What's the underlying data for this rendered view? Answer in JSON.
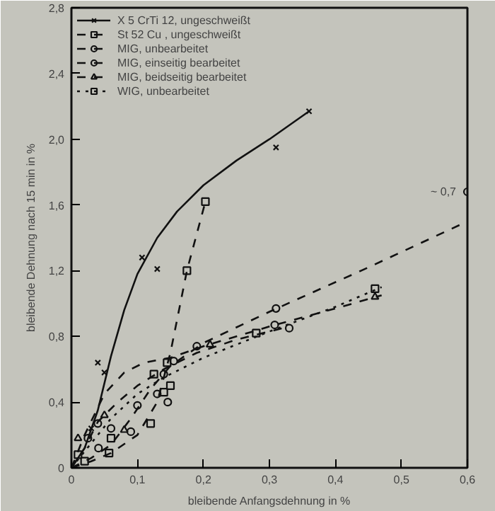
{
  "chart_data": {
    "type": "scatter",
    "xlabel": "bleibende Anfangsdehnung in %",
    "ylabel": "bleibende Dehnung nach 15 min in %",
    "xlim": [
      0,
      0.6
    ],
    "ylim": [
      0,
      2.8
    ],
    "xticks": [
      {
        "value": 0,
        "label": "0"
      },
      {
        "value": 0.1,
        "label": "0,1"
      },
      {
        "value": 0.2,
        "label": "0,2"
      },
      {
        "value": 0.3,
        "label": "0,3"
      },
      {
        "value": 0.4,
        "label": "0,4"
      },
      {
        "value": 0.5,
        "label": "0,5"
      },
      {
        "value": 0.6,
        "label": "0,6"
      }
    ],
    "yticks": [
      {
        "value": 0,
        "label": "0"
      },
      {
        "value": 0.4,
        "label": "0,4"
      },
      {
        "value": 0.8,
        "label": "0,8"
      },
      {
        "value": 1.2,
        "label": "1,2"
      },
      {
        "value": 1.6,
        "label": "1,6"
      },
      {
        "value": 2.0,
        "label": "2,0"
      },
      {
        "value": 2.4,
        "label": "2,4"
      },
      {
        "value": 2.8,
        "label": "2,8"
      }
    ],
    "grid": false,
    "legend": "top left",
    "annotations": [
      {
        "text": "~ 0,7",
        "x": 0.6,
        "y": 1.68
      }
    ],
    "series": [
      {
        "name": "X 5 CrTi 12, ungeschweißt",
        "type": "scatter",
        "color": "#111111",
        "marker": "cross",
        "x": [
          0.03,
          0.04,
          0.05,
          0.107,
          0.13,
          0.31,
          0.36
        ],
        "values": [
          0.24,
          0.64,
          0.58,
          1.28,
          1.21,
          1.95,
          2.17
        ]
      },
      {
        "type": "line",
        "color": "#111111",
        "line_style": "solid",
        "x": [
          0,
          0.02,
          0.04,
          0.06,
          0.08,
          0.1,
          0.13,
          0.16,
          0.2,
          0.25,
          0.3,
          0.36
        ],
        "values": [
          0,
          0.12,
          0.35,
          0.68,
          0.96,
          1.18,
          1.4,
          1.56,
          1.72,
          1.87,
          2.0,
          2.17
        ]
      },
      {
        "name": "St 52 Cu , ungeschweißt",
        "type": "scatter",
        "color": "#111111",
        "marker": "square",
        "x": [
          0.02,
          0.057,
          0.12,
          0.125,
          0.175,
          0.203
        ],
        "values": [
          0.04,
          0.09,
          0.27,
          0.57,
          1.2,
          1.62
        ]
      },
      {
        "type": "line",
        "color": "#111111",
        "line_style": "dashed",
        "x": [
          0,
          0.03,
          0.06,
          0.1,
          0.13,
          0.15,
          0.175,
          0.203
        ],
        "values": [
          0,
          0.04,
          0.09,
          0.2,
          0.4,
          0.7,
          1.2,
          1.62
        ]
      },
      {
        "name": "MIG, unbearbeitet",
        "type": "scatter",
        "color": "#111111",
        "marker": "circle",
        "x": [
          0.041,
          0.04,
          0.06,
          0.146,
          0.155,
          0.19,
          0.308,
          0.33
        ],
        "values": [
          0.12,
          0.27,
          0.24,
          0.4,
          0.65,
          0.74,
          0.87,
          0.85
        ]
      },
      {
        "type": "line",
        "color": "#111111",
        "line_style": "dashed",
        "x": [
          0,
          0.02,
          0.04,
          0.07,
          0.1,
          0.14,
          0.19,
          0.25,
          0.33
        ],
        "values": [
          0,
          0.12,
          0.28,
          0.4,
          0.5,
          0.6,
          0.7,
          0.78,
          0.86
        ]
      },
      {
        "name": "MIG, einseitig bearbeitet",
        "type": "scatter",
        "color": "#111111",
        "marker": "circle",
        "x": [
          0.025,
          0.09,
          0.1,
          0.13,
          0.14,
          0.31,
          0.6
        ],
        "values": [
          0.18,
          0.22,
          0.38,
          0.45,
          0.57,
          0.97,
          1.68
        ]
      },
      {
        "type": "line",
        "color": "#111111",
        "line_style": "dashed",
        "x": [
          0,
          0.03,
          0.06,
          0.09,
          0.12,
          0.15,
          0.2,
          0.3,
          0.45,
          0.6
        ],
        "values": [
          0,
          0.06,
          0.14,
          0.3,
          0.48,
          0.62,
          0.76,
          0.95,
          1.22,
          1.5
        ]
      },
      {
        "name": "MIG, beidseitig bearbeitet",
        "type": "scatter",
        "color": "#111111",
        "marker": "triangle",
        "x": [
          0.01,
          0.05,
          0.08,
          0.21,
          0.46
        ],
        "values": [
          0.18,
          0.32,
          0.23,
          0.75,
          1.04
        ]
      },
      {
        "type": "line",
        "color": "#111111",
        "line_style": "dashed",
        "x": [
          0,
          0.02,
          0.05,
          0.08,
          0.11,
          0.15,
          0.2,
          0.3,
          0.4,
          0.47
        ],
        "values": [
          0,
          0.2,
          0.45,
          0.58,
          0.64,
          0.67,
          0.74,
          0.86,
          0.97,
          1.05
        ]
      },
      {
        "name": "WIG, unbearbeitet",
        "type": "scatter",
        "color": "#111111",
        "marker": "square",
        "x": [
          0.01,
          0.06,
          0.14,
          0.15,
          0.145,
          0.28,
          0.46
        ],
        "values": [
          0.08,
          0.18,
          0.46,
          0.5,
          0.64,
          0.82,
          1.09
        ]
      },
      {
        "type": "line",
        "color": "#111111",
        "line_style": "dotted",
        "x": [
          0,
          0.03,
          0.06,
          0.1,
          0.14,
          0.2,
          0.3,
          0.4,
          0.47
        ],
        "values": [
          0,
          0.15,
          0.3,
          0.45,
          0.55,
          0.67,
          0.83,
          0.98,
          1.1
        ]
      }
    ]
  }
}
